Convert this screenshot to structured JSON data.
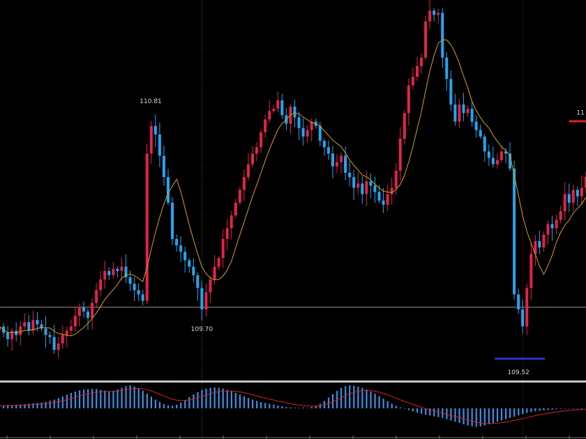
{
  "colors": {
    "background": "#000000",
    "bull": "#e3234a",
    "bear": "#23a6f0",
    "ma_line": "#d4a21a",
    "signal_line": "#e0202a",
    "hist": "#3b8fe0",
    "crosshair_line": "#9a9a9a",
    "separator": "#c8c8c8",
    "vertical_marker": "#2a8a2a",
    "vertical_marker_right": "#8a2a2a",
    "low_marker": "#3333cc",
    "high_marker": "#e0202a"
  },
  "chart_data": [
    {
      "type": "candlestick",
      "title": "",
      "xlabel": "",
      "ylabel": "",
      "ylim": [
        109.39,
        111.17
      ],
      "grid": false,
      "horizontal_line": 109.73,
      "vertical_markers": [
        48,
        124
      ],
      "moving_average": "yellow moving average line",
      "annotations": [
        {
          "text": "110.81",
          "index": 36,
          "price": 110.81
        },
        {
          "text": "109.70",
          "index": 48,
          "price": 109.7
        },
        {
          "text": "109.52",
          "index": 123,
          "price": 109.52
        },
        {
          "text": "11",
          "index": 139,
          "price": 110.6
        }
      ],
      "marker_high_price": 110.6,
      "marker_low_price": 109.52,
      "closes": [
        109.64,
        109.61,
        109.58,
        109.62,
        109.6,
        109.64,
        109.66,
        109.62,
        109.67,
        109.65,
        109.63,
        109.6,
        109.59,
        109.53,
        109.56,
        109.6,
        109.62,
        109.64,
        109.69,
        109.73,
        109.71,
        109.68,
        109.75,
        109.81,
        109.86,
        109.9,
        109.88,
        109.91,
        109.9,
        109.92,
        109.87,
        109.84,
        109.81,
        109.79,
        109.76,
        110.45,
        110.58,
        110.54,
        110.44,
        110.34,
        110.22,
        110.05,
        110.02,
        109.99,
        109.95,
        109.92,
        109.88,
        109.82,
        109.72,
        109.8,
        109.86,
        109.92,
        109.96,
        110.05,
        110.1,
        110.16,
        110.22,
        110.28,
        110.34,
        110.4,
        110.45,
        110.48,
        110.55,
        110.61,
        110.65,
        110.66,
        110.7,
        110.63,
        110.59,
        110.67,
        110.62,
        110.57,
        110.53,
        110.56,
        110.6,
        110.58,
        110.51,
        110.48,
        110.45,
        110.39,
        110.41,
        110.44,
        110.36,
        110.34,
        110.29,
        110.31,
        110.26,
        110.32,
        110.3,
        110.27,
        110.23,
        110.21,
        110.26,
        110.29,
        110.37,
        110.52,
        110.64,
        110.77,
        110.81,
        110.86,
        110.9,
        111.07,
        111.12,
        111.1,
        111.11,
        110.9,
        110.8,
        110.68,
        110.6,
        110.68,
        110.64,
        110.66,
        110.6,
        110.56,
        110.53,
        110.46,
        110.43,
        110.4,
        110.42,
        110.46,
        110.45,
        110.38,
        109.79,
        109.72,
        109.64,
        109.82,
        109.98,
        110.04,
        110.01,
        110.07,
        110.12,
        110.1,
        110.14,
        110.18,
        110.26,
        110.22,
        110.28,
        110.25,
        110.29,
        110.34
      ]
    },
    {
      "type": "bar",
      "title": "",
      "series": [
        {
          "values": [
            0.12,
            0.14,
            0.16,
            0.15,
            0.17,
            0.18,
            0.2,
            0.22,
            0.24,
            0.26,
            0.28,
            0.31,
            0.36,
            0.42,
            0.49,
            0.57,
            0.65,
            0.74,
            0.8,
            0.86,
            0.9,
            0.92,
            0.93,
            0.92,
            0.88,
            0.85,
            0.82,
            0.84,
            0.9,
            0.98,
            1.06,
            1.1,
            1.04,
            0.96,
            0.84,
            0.7,
            0.56,
            0.42,
            0.3,
            0.2,
            0.14,
            0.12,
            0.18,
            0.28,
            0.4,
            0.54,
            0.66,
            0.78,
            0.88,
            0.94,
            0.99,
            1.0,
            0.98,
            0.94,
            0.88,
            0.82,
            0.74,
            0.66,
            0.58,
            0.5,
            0.42,
            0.36,
            0.3,
            0.26,
            0.22,
            0.18,
            0.14,
            0.1,
            0.06,
            0.04,
            0.03,
            0.02,
            0.04,
            0.02,
            0.06,
            0.12,
            0.22,
            0.36,
            0.52,
            0.68,
            0.84,
            0.98,
            1.06,
            1.1,
            1.08,
            1.04,
            0.98,
            0.9,
            0.8,
            0.7,
            0.58,
            0.46,
            0.34,
            0.22,
            0.12,
            0.04,
            -0.02,
            -0.08,
            -0.14,
            -0.2,
            -0.26,
            -0.3,
            -0.34,
            -0.38,
            -0.42,
            -0.46,
            -0.52,
            -0.58,
            -0.64,
            -0.7,
            -0.76,
            -0.82,
            -0.86,
            -0.88,
            -0.86,
            -0.82,
            -0.76,
            -0.7,
            -0.64,
            -0.58,
            -0.52,
            -0.46,
            -0.4,
            -0.34,
            -0.28,
            -0.22,
            -0.18,
            -0.14,
            -0.12,
            -0.1,
            -0.08,
            -0.06,
            -0.04,
            -0.02,
            0.0,
            0.01,
            -0.01,
            -0.02,
            -0.03,
            -0.02
          ]
        }
      ],
      "signal": "red signal line"
    }
  ]
}
